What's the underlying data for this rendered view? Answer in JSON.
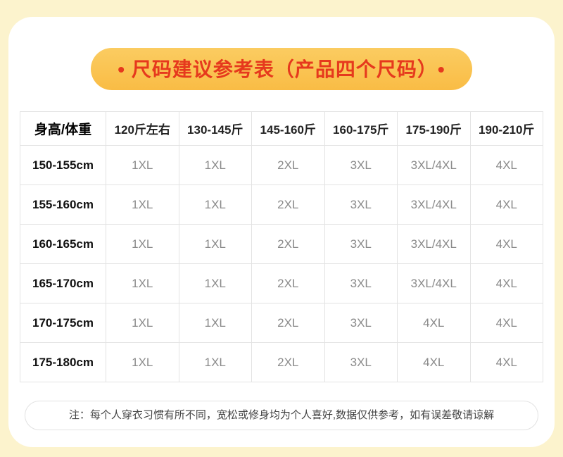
{
  "page": {
    "background_color": "#FCF3CD",
    "card_color": "#FFFFFF"
  },
  "title": {
    "text": "• 尺码建议参考表（产品四个尺码）•",
    "background_color": "#F9BC45",
    "text_color": "#E6391D"
  },
  "size_table": {
    "corner_header": "身高/体重",
    "column_headers": [
      "120斤左右",
      "130-145斤",
      "145-160斤",
      "160-175斤",
      "175-190斤",
      "190-210斤"
    ],
    "rows": [
      {
        "label": "150-155cm",
        "values": [
          "1XL",
          "1XL",
          "2XL",
          "3XL",
          "3XL/4XL",
          "4XL"
        ]
      },
      {
        "label": "155-160cm",
        "values": [
          "1XL",
          "1XL",
          "2XL",
          "3XL",
          "3XL/4XL",
          "4XL"
        ]
      },
      {
        "label": "160-165cm",
        "values": [
          "1XL",
          "1XL",
          "2XL",
          "3XL",
          "3XL/4XL",
          "4XL"
        ]
      },
      {
        "label": "165-170cm",
        "values": [
          "1XL",
          "1XL",
          "2XL",
          "3XL",
          "3XL/4XL",
          "4XL"
        ]
      },
      {
        "label": "170-175cm",
        "values": [
          "1XL",
          "1XL",
          "2XL",
          "3XL",
          "4XL",
          "4XL"
        ]
      },
      {
        "label": "175-180cm",
        "values": [
          "1XL",
          "1XL",
          "2XL",
          "3XL",
          "4XL",
          "4XL"
        ]
      }
    ]
  },
  "footer_note": {
    "text": "注：每个人穿衣习惯有所不同，宽松或修身均为个人喜好,数据仅供参考，如有误差敬请谅解"
  }
}
